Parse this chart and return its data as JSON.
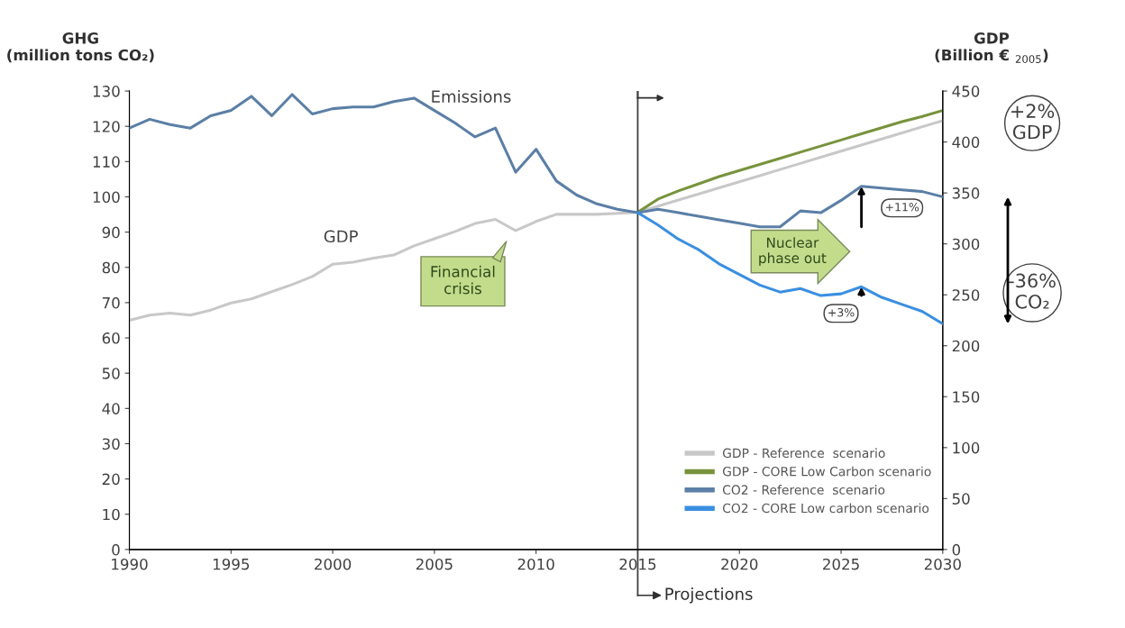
{
  "chart_data": {
    "type": "line",
    "ylabel": "GHG\n(million tons CO₂)",
    "y2label": "GDP\n(Billion € $_{2005}$)",
    "xlim": [
      1990,
      2030
    ],
    "xticks": [
      1990,
      1995,
      2000,
      2005,
      2010,
      2015,
      2020,
      2025,
      2030
    ],
    "ylim": [
      0,
      130
    ],
    "yticks": [
      0,
      10,
      20,
      30,
      40,
      50,
      60,
      70,
      80,
      90,
      100,
      110,
      120,
      130
    ],
    "y2lim": [
      0,
      450
    ],
    "y2ticks": [
      0,
      50,
      100,
      150,
      200,
      250,
      300,
      350,
      400,
      450
    ],
    "grid": false,
    "legend": "bottom right",
    "series": [
      {
        "name": "GDP - Reference  scenario",
        "color": "#c8c8c8",
        "axis": "y2",
        "x": [
          1990,
          1991,
          1992,
          1993,
          1994,
          1995,
          1996,
          1997,
          1998,
          1999,
          2000,
          2001,
          2002,
          2003,
          2004,
          2005,
          2006,
          2007,
          2008,
          2009,
          2010,
          2011,
          2012,
          2013,
          2014,
          2015,
          2016,
          2017,
          2018,
          2019,
          2020,
          2021,
          2022,
          2023,
          2024,
          2025,
          2026,
          2027,
          2028,
          2029,
          2030
        ],
        "values": [
          225,
          230,
          232,
          230,
          235,
          242,
          246,
          253,
          260,
          268,
          280,
          282,
          286,
          289,
          298,
          305,
          312,
          320,
          324,
          313,
          322,
          329,
          329,
          329,
          330,
          331,
          337,
          343,
          349,
          355,
          361,
          367,
          373,
          379,
          385,
          391,
          397,
          403,
          409,
          415,
          421
        ]
      },
      {
        "name": "GDP - CORE Low Carbon scenario",
        "color": "#77933c",
        "axis": "y2",
        "x": [
          2015,
          2016,
          2017,
          2018,
          2019,
          2020,
          2021,
          2022,
          2023,
          2024,
          2025,
          2026,
          2027,
          2028,
          2029,
          2030
        ],
        "values": [
          331,
          344,
          352,
          359,
          366,
          372,
          378,
          384,
          390,
          396,
          402,
          408,
          414,
          420,
          425,
          431
        ]
      },
      {
        "name": "CO2 - Reference  scenario",
        "color": "#5b7fa6",
        "x": [
          1990,
          1991,
          1992,
          1993,
          1994,
          1995,
          1996,
          1997,
          1998,
          1999,
          2000,
          2001,
          2002,
          2003,
          2004,
          2005,
          2006,
          2007,
          2008,
          2009,
          2010,
          2011,
          2012,
          2013,
          2014,
          2015,
          2016,
          2017,
          2018,
          2019,
          2020,
          2021,
          2022,
          2023,
          2024,
          2025,
          2026,
          2027,
          2028,
          2029,
          2030
        ],
        "values": [
          119.5,
          122,
          120.5,
          119.5,
          123,
          124.5,
          128.5,
          123,
          129,
          123.5,
          125,
          125.5,
          125.5,
          127,
          128,
          124.5,
          121,
          117,
          119.5,
          107,
          113.5,
          104.5,
          100.5,
          98,
          96.5,
          95.5,
          96.5,
          95.5,
          94.5,
          93.5,
          92.5,
          91.5,
          91.5,
          96,
          95.5,
          99,
          103,
          102.5,
          102,
          101.5,
          100
        ]
      },
      {
        "name": "CO2 - CORE Low carbon scenario",
        "color": "#3a8fe0",
        "x": [
          2015,
          2016,
          2017,
          2018,
          2019,
          2020,
          2021,
          2022,
          2023,
          2024,
          2025,
          2026,
          2027,
          2028,
          2029,
          2030
        ],
        "values": [
          95.5,
          92,
          88,
          85,
          81,
          78,
          75,
          73,
          74,
          72,
          72.5,
          74.5,
          71.5,
          69.5,
          67.5,
          64
        ]
      }
    ],
    "ref_lines": [
      {
        "axis": "x",
        "value": 2015,
        "label": "Projections",
        "color": "#404040"
      }
    ],
    "annotations": [
      "Emissions",
      "GDP",
      "Financial\ncrisis",
      "Nuclear\nphase out",
      "+11%",
      "+3%",
      "+2%\nGDP",
      "-36%\nCO₂"
    ]
  }
}
